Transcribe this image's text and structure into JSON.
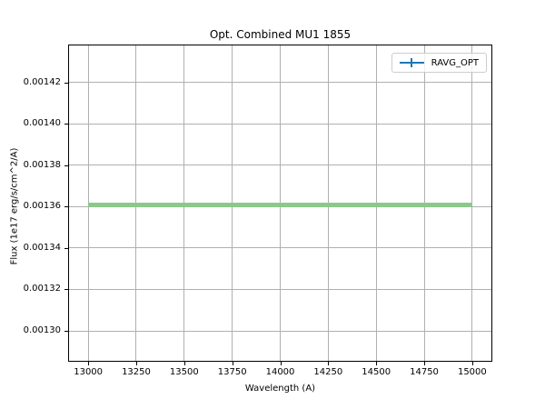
{
  "chart_data": {
    "type": "line",
    "title": "Opt. Combined MU1 1855",
    "xlabel": "Wavelength (A)",
    "ylabel": "Flux (1e17 erg/s/cm^2/A)",
    "xlim": [
      12900,
      15100
    ],
    "ylim": [
      0.0012855,
      0.001438
    ],
    "x_ticks": [
      13000,
      13250,
      13500,
      13750,
      14000,
      14250,
      14500,
      14750,
      15000
    ],
    "x_tick_labels": [
      "13000",
      "13250",
      "13500",
      "13750",
      "14000",
      "14250",
      "14500",
      "14750",
      "15000"
    ],
    "y_ticks": [
      0.0013,
      0.00132,
      0.00134,
      0.00136,
      0.00138,
      0.0014,
      0.00142
    ],
    "y_tick_labels": [
      "0.00130",
      "0.00132",
      "0.00134",
      "0.00136",
      "0.00138",
      "0.00140",
      "0.00142"
    ],
    "grid": true,
    "series": [
      {
        "name": "RAVG_OPT",
        "x": [
          13000,
          15000
        ],
        "y": [
          0.001361,
          0.001361
        ],
        "y_err": 1e-06,
        "line_color": "#1f77b4",
        "errorband_color": "#8bc98b"
      }
    ],
    "legend": {
      "position": "upper right",
      "entries": [
        {
          "label": "RAVG_OPT",
          "color": "#1f77b4",
          "symbol": "errorbar"
        }
      ]
    },
    "colors": {
      "grid": "#b0b0b0",
      "spine": "#000000",
      "background": "#ffffff"
    }
  }
}
